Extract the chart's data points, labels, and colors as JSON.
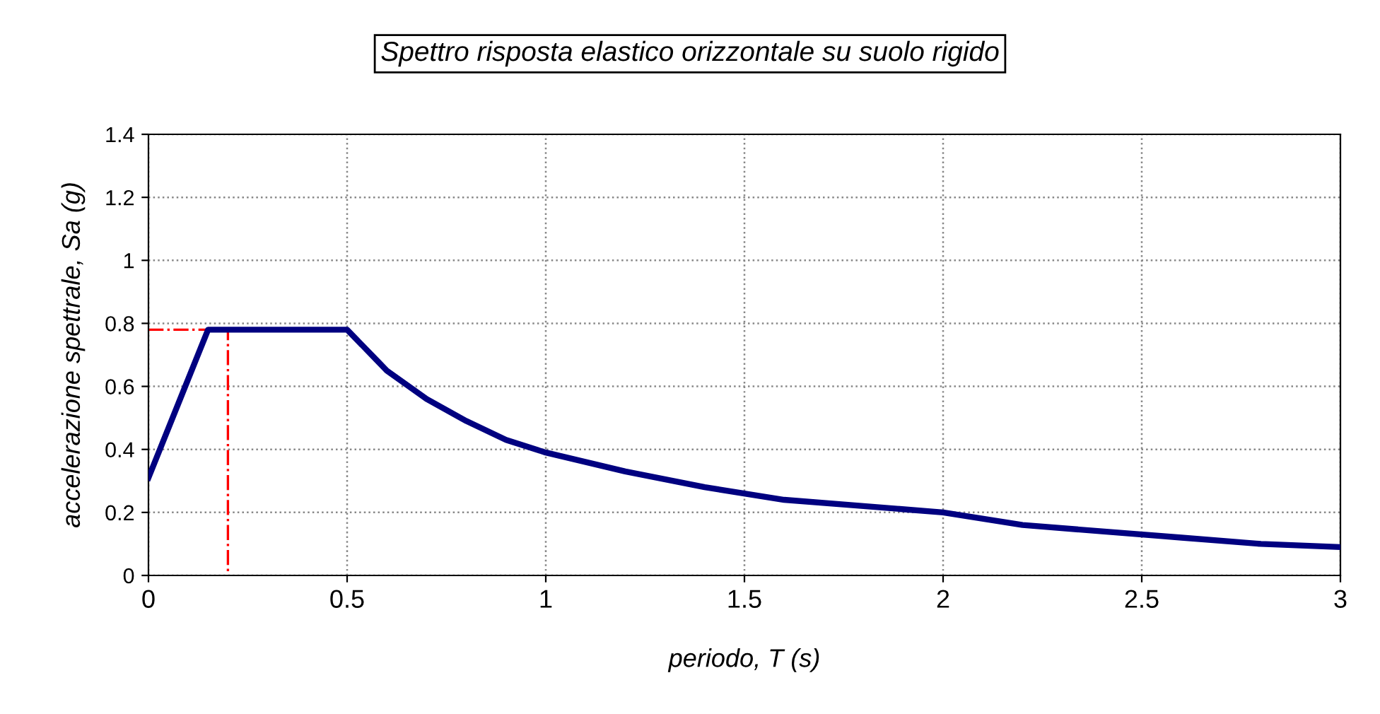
{
  "chart_data": {
    "type": "line",
    "title": "Spettro risposta elastico orizzontale su suolo rigido",
    "xlabel": "periodo, T (s)",
    "ylabel": "accelerazione spettrale, Sa (g)",
    "series": [
      {
        "color": "#000080",
        "x": [
          0,
          0.15,
          0.5,
          0.6,
          0.7,
          0.8,
          0.9,
          1.0,
          1.2,
          1.4,
          1.6,
          1.8,
          2.0,
          2.2,
          2.4,
          2.6,
          2.8,
          3.0
        ],
        "values": [
          0.31,
          0.78,
          0.78,
          0.65,
          0.56,
          0.49,
          0.43,
          0.39,
          0.33,
          0.28,
          0.24,
          0.22,
          0.2,
          0.16,
          0.14,
          0.12,
          0.1,
          0.09
        ],
        "line_style": "solid"
      },
      {
        "color": "#ff0000",
        "x": [
          0,
          0.2,
          0.2
        ],
        "values": [
          0.78,
          0.78,
          0
        ],
        "line_style": "dashdot"
      }
    ],
    "xlim": [
      0,
      3
    ],
    "xticks": [
      0,
      0.5,
      1,
      1.5,
      2,
      2.5,
      3
    ],
    "ylim": [
      0,
      1.4
    ],
    "yticks": [
      0,
      0.2,
      0.4,
      0.6,
      0.8,
      1,
      1.2,
      1.4
    ],
    "grid": true,
    "legend": false,
    "marker": "none"
  }
}
